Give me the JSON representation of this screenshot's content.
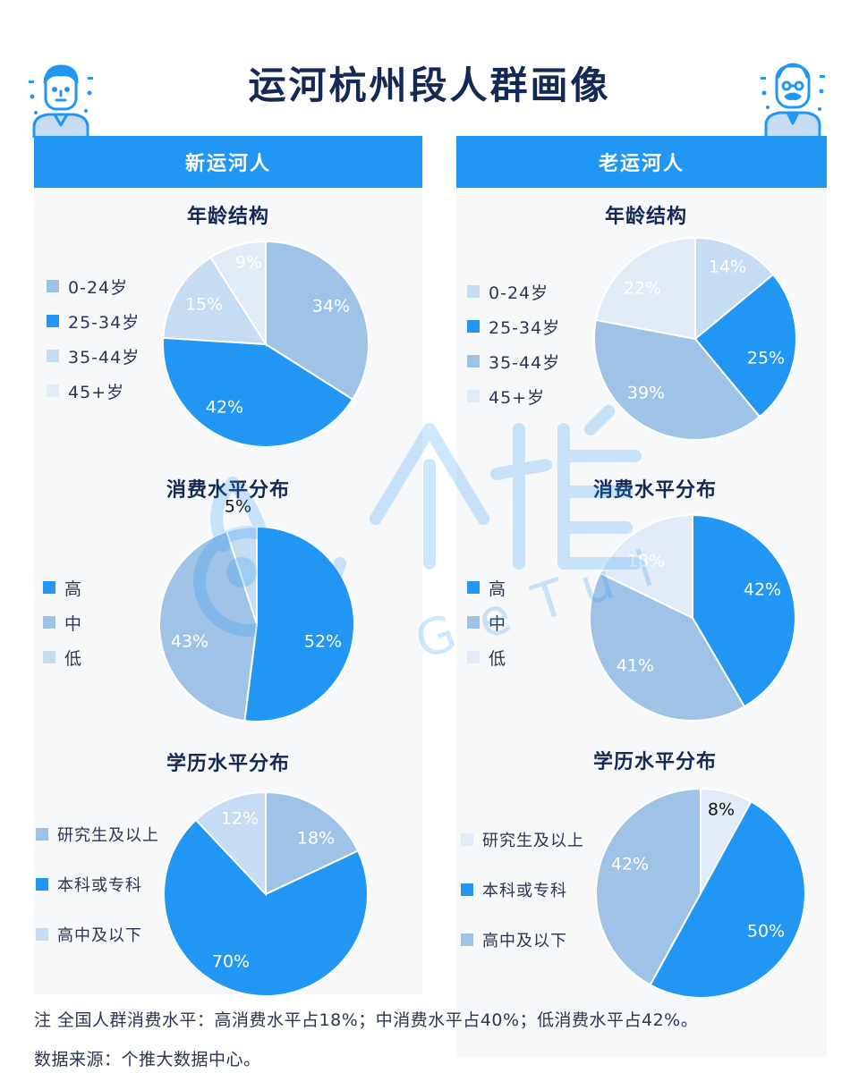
{
  "title": "运河杭州段人群画像",
  "colors": {
    "blue": "#2196f3",
    "mid": "#9fc3e7",
    "light": "#c6dcf2",
    "pale": "#e1ecf8"
  },
  "panels": {
    "left": {
      "header": "新运河人"
    },
    "right": {
      "header": "老运河人"
    }
  },
  "chart_data": [
    {
      "type": "pie",
      "group": "新运河人",
      "title": "年龄结构",
      "categories": [
        "0-24岁",
        "25-34岁",
        "35-44岁",
        "45+岁"
      ],
      "values": [
        34,
        42,
        15,
        9
      ],
      "labels": [
        "34%",
        "42%",
        "15%",
        "9%"
      ],
      "colors": [
        "#9fc3e7",
        "#2196f3",
        "#c6dcf2",
        "#e1ecf8"
      ],
      "legend_position": "left"
    },
    {
      "type": "pie",
      "group": "新运河人",
      "title": "消费水平分布",
      "categories": [
        "高",
        "中",
        "低"
      ],
      "values": [
        52,
        43,
        5
      ],
      "labels": [
        "52%",
        "43%",
        "5%"
      ],
      "colors": [
        "#2196f3",
        "#9fc3e7",
        "#c6dcf2"
      ],
      "legend_position": "left"
    },
    {
      "type": "pie",
      "group": "新运河人",
      "title": "学历水平分布",
      "categories": [
        "研究生及以上",
        "本科或专科",
        "高中及以下"
      ],
      "values": [
        18,
        70,
        12
      ],
      "labels": [
        "18%",
        "70%",
        "12%"
      ],
      "colors": [
        "#9fc3e7",
        "#2196f3",
        "#c6dcf2"
      ],
      "legend_position": "left"
    },
    {
      "type": "pie",
      "group": "老运河人",
      "title": "年龄结构",
      "categories": [
        "0-24岁",
        "25-34岁",
        "35-44岁",
        "45+岁"
      ],
      "values": [
        14,
        25,
        39,
        22
      ],
      "labels": [
        "14%",
        "25%",
        "39%",
        "22%"
      ],
      "colors": [
        "#c6dcf2",
        "#2196f3",
        "#9fc3e7",
        "#e1ecf8"
      ],
      "legend_position": "left"
    },
    {
      "type": "pie",
      "group": "老运河人",
      "title": "消费水平分布",
      "categories": [
        "高",
        "中",
        "低"
      ],
      "values": [
        42,
        41,
        18
      ],
      "labels": [
        "42%",
        "41%",
        "18%"
      ],
      "colors": [
        "#2196f3",
        "#9fc3e7",
        "#e1ecf8"
      ],
      "legend_position": "left"
    },
    {
      "type": "pie",
      "group": "老运河人",
      "title": "学历水平分布",
      "categories": [
        "研究生及以上",
        "本科或专科",
        "高中及以下"
      ],
      "values": [
        8,
        50,
        42
      ],
      "labels": [
        "8%",
        "50%",
        "42%"
      ],
      "colors": [
        "#e1ecf8",
        "#2196f3",
        "#9fc3e7"
      ],
      "legend_position": "left"
    }
  ],
  "footnotes": {
    "note": "注 全国人群消费水平：高消费水平占18%；中消费水平占40%；低消费水平占42%。",
    "source": "数据来源：个推大数据中心。"
  },
  "watermark": {
    "cn": "个推",
    "en": "GeTui"
  }
}
